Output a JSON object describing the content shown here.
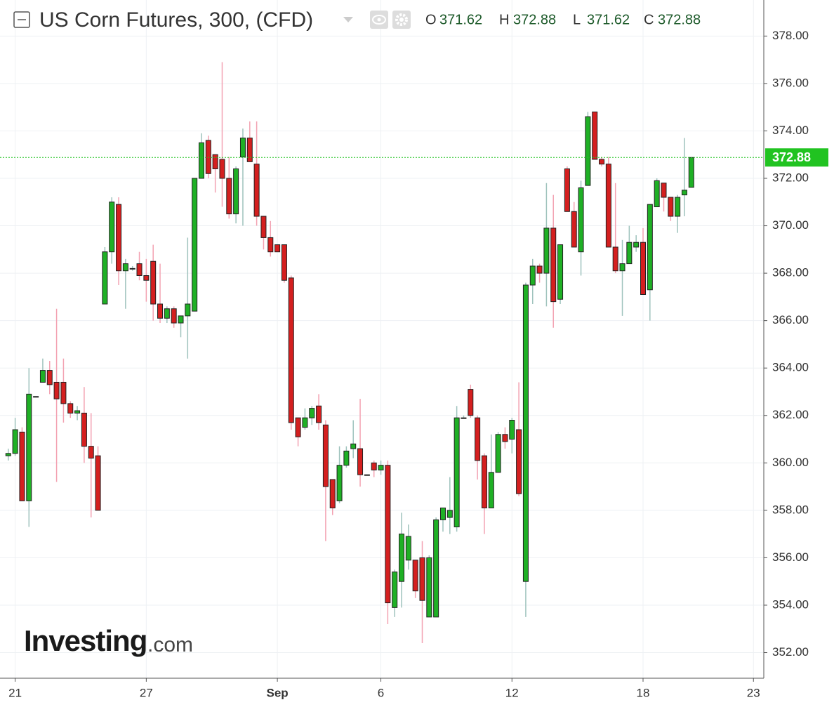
{
  "chart_data": {
    "type": "candlestick",
    "title": "US Corn Futures, 300, (CFD)",
    "ohlc_header": [
      {
        "label": "O",
        "value": 371.62
      },
      {
        "label": "H",
        "value": 372.88
      },
      {
        "label": "L",
        "value": 371.62
      },
      {
        "label": "C",
        "value": 372.88
      }
    ],
    "watermark": [
      "Investing",
      ".com"
    ],
    "last_price": 372.88,
    "up_color": "#1fb025",
    "down_color": "#d41f1f",
    "up_wick_color": "#9fc3bd",
    "down_wick_color": "#f3a2b2",
    "last_price_color": "#21c321",
    "grid": true,
    "open": [
      360.3,
      360.4,
      361.3,
      358.4,
      362.8,
      363.4,
      363.9,
      363.4,
      363.4,
      362.5,
      362.1,
      362.1,
      360.7,
      360.3,
      366.7,
      368.9,
      370.9,
      368.1,
      368.2,
      368.4,
      367.9,
      368.5,
      366.7,
      366.1,
      366.5,
      365.9,
      366.2,
      366.4,
      372.0,
      373.6,
      373.0,
      372.8,
      372.0,
      370.5,
      372.9,
      373.7,
      372.6,
      370.4,
      369.5,
      369.2,
      369.2,
      367.8,
      361.9,
      361.5,
      361.9,
      362.4,
      361.6,
      359.3,
      358.4,
      359.9,
      360.6,
      360.6,
      359.5,
      360.0,
      359.7,
      359.9,
      353.9,
      355.0,
      355.9,
      355.9,
      356.0,
      353.5,
      353.5,
      357.6,
      357.7,
      357.3,
      361.9,
      363.1,
      361.9,
      360.3,
      358.1,
      359.6,
      361.2,
      361.0,
      361.4,
      355.0,
      367.5,
      368.3,
      368.0,
      369.9,
      366.9,
      372.4,
      370.6,
      368.9,
      371.7,
      374.8,
      372.8,
      372.6,
      369.1,
      368.1,
      368.4,
      369.1,
      369.3,
      367.3,
      370.8,
      371.8,
      371.2,
      370.4,
      371.3,
      371.62
    ],
    "high": [
      360.6,
      361.9,
      361.5,
      364.0,
      362.8,
      364.4,
      364.3,
      366.5,
      364.4,
      362.6,
      362.4,
      363.2,
      362.1,
      360.7,
      369.1,
      371.2,
      371.2,
      368.6,
      368.3,
      368.9,
      368.6,
      369.2,
      368.4,
      366.6,
      366.6,
      366.2,
      369.5,
      372.0,
      373.9,
      373.8,
      373.0,
      376.9,
      372.9,
      372.5,
      374.1,
      374.4,
      374.4,
      370.4,
      370.2,
      369.2,
      369.2,
      367.9,
      361.9,
      362.3,
      362.4,
      362.9,
      361.8,
      359.3,
      360.7,
      360.7,
      361.8,
      362.7,
      359.5,
      360.1,
      360.1,
      360.1,
      355.5,
      357.9,
      357.4,
      355.9,
      356.7,
      356.1,
      357.7,
      358.1,
      359.4,
      362.4,
      362.0,
      363.3,
      362.0,
      360.4,
      361.2,
      361.3,
      361.5,
      361.9,
      363.4,
      367.6,
      368.6,
      368.4,
      371.8,
      371.3,
      369.2,
      372.5,
      371.0,
      371.9,
      374.8,
      374.8,
      372.9,
      372.9,
      371.8,
      369.4,
      370.0,
      369.6,
      369.9,
      370.9,
      372.0,
      371.8,
      371.2,
      371.3,
      373.7,
      372.88
    ],
    "low": [
      360.1,
      360.3,
      358.4,
      357.3,
      362.8,
      363.4,
      362.9,
      359.2,
      361.7,
      361.9,
      361.8,
      360.0,
      357.7,
      358.0,
      366.7,
      368.4,
      367.5,
      366.5,
      368.1,
      367.7,
      366.8,
      366.0,
      365.9,
      365.9,
      365.7,
      365.3,
      364.4,
      366.4,
      372.0,
      372.0,
      371.4,
      370.8,
      370.3,
      370.1,
      370.0,
      372.7,
      370.0,
      369.0,
      368.7,
      368.9,
      367.6,
      361.4,
      360.7,
      361.4,
      361.6,
      361.4,
      356.7,
      357.8,
      358.3,
      359.8,
      360.2,
      359.0,
      359.5,
      359.4,
      359.5,
      353.2,
      353.5,
      353.9,
      355.5,
      354.3,
      352.4,
      353.5,
      353.5,
      357.1,
      357.0,
      357.1,
      361.9,
      361.9,
      359.3,
      357.0,
      358.1,
      359.6,
      360.6,
      360.4,
      358.6,
      353.5,
      366.7,
      367.6,
      366.6,
      365.7,
      366.7,
      370.6,
      369.1,
      367.9,
      371.7,
      372.8,
      372.5,
      369.1,
      368.0,
      366.2,
      368.4,
      368.9,
      367.1,
      366.0,
      370.8,
      370.6,
      370.2,
      369.7,
      370.4,
      371.62
    ],
    "close": [
      360.4,
      361.4,
      358.4,
      362.9,
      362.8,
      363.9,
      363.3,
      362.7,
      362.5,
      362.1,
      362.2,
      360.7,
      360.2,
      358.0,
      368.9,
      371.0,
      368.1,
      368.4,
      368.2,
      367.9,
      367.7,
      366.7,
      366.1,
      366.5,
      365.9,
      366.2,
      366.7,
      372.0,
      373.5,
      372.2,
      372.4,
      372.0,
      370.5,
      372.4,
      373.7,
      372.7,
      370.4,
      369.5,
      368.9,
      368.9,
      367.7,
      361.7,
      361.1,
      361.9,
      362.3,
      361.7,
      359.0,
      358.1,
      359.9,
      360.5,
      360.8,
      359.5,
      359.5,
      359.7,
      359.9,
      354.1,
      355.4,
      357.0,
      356.9,
      354.6,
      354.2,
      356.0,
      357.6,
      358.1,
      358.0,
      361.9,
      361.9,
      362.0,
      360.1,
      358.1,
      359.6,
      361.2,
      360.9,
      361.8,
      358.7,
      367.5,
      368.3,
      368.0,
      369.9,
      366.8,
      369.2,
      370.6,
      369.1,
      371.6,
      374.6,
      372.8,
      372.6,
      369.1,
      368.1,
      368.4,
      369.3,
      369.3,
      367.1,
      370.9,
      371.9,
      371.2,
      370.4,
      371.2,
      371.5,
      372.88
    ],
    "xlim": [
      -1.2,
      109.5
    ],
    "xticks": [
      {
        "value": 1,
        "label": "21"
      },
      {
        "value": 20,
        "label": "27"
      },
      {
        "value": 39,
        "label": "Sep"
      },
      {
        "value": 54,
        "label": "6"
      },
      {
        "value": 73,
        "label": "12"
      },
      {
        "value": 92,
        "label": "18"
      },
      {
        "value": 108,
        "label": "23"
      }
    ],
    "ylim": [
      350.92,
      379.52
    ],
    "yticks": [
      {
        "value": 352,
        "label": "352.00"
      },
      {
        "value": 354,
        "label": "354.00"
      },
      {
        "value": 356,
        "label": "356.00"
      },
      {
        "value": 358,
        "label": "358.00"
      },
      {
        "value": 360,
        "label": "360.00"
      },
      {
        "value": 362,
        "label": "362.00"
      },
      {
        "value": 364,
        "label": "364.00"
      },
      {
        "value": 366,
        "label": "366.00"
      },
      {
        "value": 368,
        "label": "368.00"
      },
      {
        "value": 370,
        "label": "370.00"
      },
      {
        "value": 372,
        "label": "372.00"
      },
      {
        "value": 374,
        "label": "374.00"
      },
      {
        "value": 376,
        "label": "376.00"
      },
      {
        "value": 378,
        "label": "378.00"
      }
    ]
  }
}
